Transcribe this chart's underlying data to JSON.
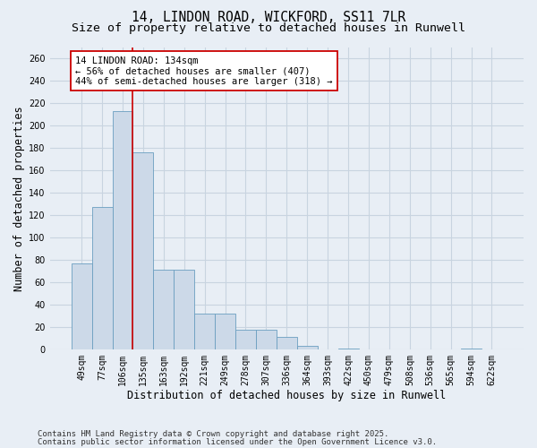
{
  "title_line1": "14, LINDON ROAD, WICKFORD, SS11 7LR",
  "title_line2": "Size of property relative to detached houses in Runwell",
  "xlabel": "Distribution of detached houses by size in Runwell",
  "ylabel": "Number of detached properties",
  "bar_color": "#ccd9e8",
  "bar_edge_color": "#6a9ec0",
  "bins": [
    "49sqm",
    "77sqm",
    "106sqm",
    "135sqm",
    "163sqm",
    "192sqm",
    "221sqm",
    "249sqm",
    "278sqm",
    "307sqm",
    "336sqm",
    "364sqm",
    "393sqm",
    "422sqm",
    "450sqm",
    "479sqm",
    "508sqm",
    "536sqm",
    "565sqm",
    "594sqm",
    "622sqm"
  ],
  "values": [
    77,
    127,
    213,
    176,
    71,
    71,
    32,
    32,
    18,
    18,
    11,
    3,
    0,
    1,
    0,
    0,
    0,
    0,
    0,
    1,
    0
  ],
  "ylim": [
    0,
    270
  ],
  "yticks": [
    0,
    20,
    40,
    60,
    80,
    100,
    120,
    140,
    160,
    180,
    200,
    220,
    240,
    260
  ],
  "vline_idx": 3,
  "vline_color": "#cc0000",
  "annotation_text": "14 LINDON ROAD: 134sqm\n← 56% of detached houses are smaller (407)\n44% of semi-detached houses are larger (318) →",
  "annotation_box_color": "#cc0000",
  "footer_line1": "Contains HM Land Registry data © Crown copyright and database right 2025.",
  "footer_line2": "Contains public sector information licensed under the Open Government Licence v3.0.",
  "background_color": "#e8eef5",
  "plot_bg_color": "#e8eef5",
  "grid_color": "#c8d4e0",
  "title_fontsize": 10.5,
  "subtitle_fontsize": 9.5,
  "axis_label_fontsize": 8.5,
  "tick_fontsize": 7,
  "footer_fontsize": 6.5,
  "annot_fontsize": 7.5
}
